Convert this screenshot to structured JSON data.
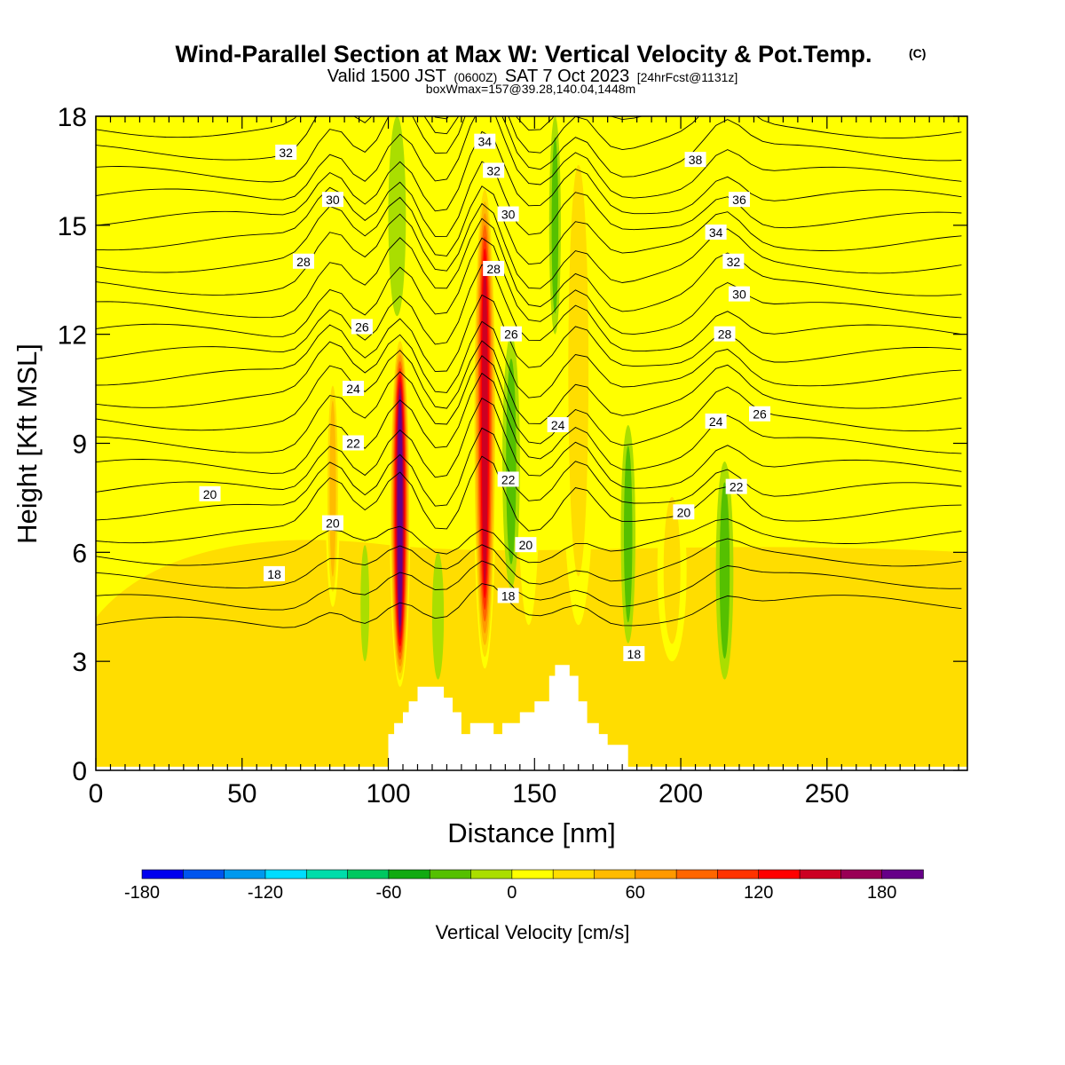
{
  "title": {
    "main": "Wind-Parallel Section at Max W: Vertical Velocity & Pot.Temp.",
    "copyright": "(C)",
    "valid_prefix": "Valid 1500 JST",
    "valid_utc": "(0600Z)",
    "valid_date": "SAT 7 Oct 2023",
    "forecast": "[24hrFcst@1131z]",
    "box_info": "boxWmax=157@39.28,140.04,1448m"
  },
  "chart_data": {
    "type": "heatmap",
    "xlabel": "Distance [nm]",
    "ylabel": "Height [Kft MSL]",
    "xlim": [
      0,
      298
    ],
    "ylim": [
      0,
      18
    ],
    "x_ticks": [
      0,
      50,
      100,
      150,
      200,
      250
    ],
    "y_ticks": [
      0,
      3,
      6,
      9,
      12,
      15,
      18
    ],
    "colorbar": {
      "label": "Vertical Velocity [cm/s]",
      "range": [
        -180,
        200
      ],
      "step": 20,
      "tick_values": [
        -180,
        -120,
        -60,
        0,
        60,
        120,
        180
      ],
      "colors": [
        "#0000ee",
        "#0055ee",
        "#0099ee",
        "#00ddff",
        "#00ddaa",
        "#00c860",
        "#11aa11",
        "#55c000",
        "#aade00",
        "#ffff00",
        "#ffdd00",
        "#ffbb00",
        "#ff9900",
        "#ff6600",
        "#ff3300",
        "#ff0000",
        "#cc0022",
        "#990055",
        "#660088"
      ]
    },
    "background_level": 0,
    "updraft_bands": [
      {
        "x": 104,
        "width": 7,
        "ytop": 12.0,
        "ybot": 2.3,
        "peak": 200
      },
      {
        "x": 133,
        "width": 8,
        "ytop": 16.3,
        "ybot": 2.8,
        "peak": 150
      },
      {
        "x": 81,
        "width": 5,
        "ytop": 11.0,
        "ybot": 4.5,
        "peak": 60
      },
      {
        "x": 148,
        "width": 9,
        "ytop": 18,
        "ybot": 4.0,
        "peak": 20
      },
      {
        "x": 165,
        "width": 12,
        "ytop": 18,
        "ybot": 4.0,
        "peak": 40
      },
      {
        "x": 197,
        "width": 10,
        "ytop": 8.0,
        "ybot": 3.0,
        "peak": 40
      },
      {
        "x": 75,
        "width": 3,
        "ytop": 15.0,
        "ybot": 6.5,
        "peak": 20
      }
    ],
    "downdraft_bands": [
      {
        "x": 142,
        "width": 6,
        "ytop": 12.0,
        "ybot": 5.0,
        "peak": -40
      },
      {
        "x": 157,
        "width": 4,
        "ytop": 18,
        "ybot": 12,
        "peak": -40
      },
      {
        "x": 182,
        "width": 5,
        "ytop": 9.5,
        "ybot": 3.5,
        "peak": -40
      },
      {
        "x": 215,
        "width": 6,
        "ytop": 8.5,
        "ybot": 2.5,
        "peak": -40
      },
      {
        "x": 92,
        "width": 3,
        "ytop": 6.2,
        "ybot": 3.0,
        "peak": -20
      },
      {
        "x": 117,
        "width": 4,
        "ytop": 6.0,
        "ybot": 2.5,
        "peak": -20
      },
      {
        "x": 103,
        "width": 6,
        "ytop": 18,
        "ybot": 12.5,
        "peak": -20
      }
    ],
    "lower_region": {
      "level": 20,
      "note": "yellow region below ~6 Kft"
    },
    "terrain_profile": [
      [
        100,
        0.0
      ],
      [
        100,
        1.0
      ],
      [
        102,
        1.0
      ],
      [
        102,
        1.3
      ],
      [
        105,
        1.3
      ],
      [
        105,
        1.6
      ],
      [
        107,
        1.6
      ],
      [
        107,
        1.9
      ],
      [
        110,
        1.9
      ],
      [
        110,
        2.3
      ],
      [
        119,
        2.3
      ],
      [
        119,
        2.0
      ],
      [
        122,
        2.0
      ],
      [
        122,
        1.6
      ],
      [
        125,
        1.6
      ],
      [
        125,
        1.0
      ],
      [
        128,
        1.0
      ],
      [
        128,
        1.3
      ],
      [
        136,
        1.3
      ],
      [
        136,
        1.0
      ],
      [
        139,
        1.0
      ],
      [
        139,
        1.3
      ],
      [
        145,
        1.3
      ],
      [
        145,
        1.6
      ],
      [
        150,
        1.6
      ],
      [
        150,
        1.9
      ],
      [
        155,
        1.9
      ],
      [
        155,
        2.6
      ],
      [
        157,
        2.6
      ],
      [
        157,
        2.9
      ],
      [
        162,
        2.9
      ],
      [
        162,
        2.6
      ],
      [
        165,
        2.6
      ],
      [
        165,
        1.9
      ],
      [
        168,
        1.9
      ],
      [
        168,
        1.3
      ],
      [
        172,
        1.3
      ],
      [
        172,
        1.0
      ],
      [
        175,
        1.0
      ],
      [
        175,
        0.7
      ],
      [
        182,
        0.7
      ],
      [
        182,
        0.0
      ]
    ],
    "contour_labels": [
      {
        "text": "32",
        "x": 65,
        "y": 17.0
      },
      {
        "text": "30",
        "x": 81,
        "y": 15.7
      },
      {
        "text": "28",
        "x": 71,
        "y": 14.0
      },
      {
        "text": "26",
        "x": 91,
        "y": 12.2
      },
      {
        "text": "24",
        "x": 88,
        "y": 10.5
      },
      {
        "text": "22",
        "x": 88,
        "y": 9.0
      },
      {
        "text": "20",
        "x": 39,
        "y": 7.6
      },
      {
        "text": "20",
        "x": 81,
        "y": 6.8
      },
      {
        "text": "18",
        "x": 61,
        "y": 5.4
      },
      {
        "text": "34",
        "x": 133,
        "y": 17.3
      },
      {
        "text": "32",
        "x": 136,
        "y": 16.5
      },
      {
        "text": "30",
        "x": 141,
        "y": 15.3
      },
      {
        "text": "28",
        "x": 136,
        "y": 13.8
      },
      {
        "text": "26",
        "x": 142,
        "y": 12.0
      },
      {
        "text": "24",
        "x": 158,
        "y": 9.5
      },
      {
        "text": "22",
        "x": 141,
        "y": 8.0
      },
      {
        "text": "20",
        "x": 147,
        "y": 6.2
      },
      {
        "text": "18",
        "x": 141,
        "y": 4.8
      },
      {
        "text": "18",
        "x": 184,
        "y": 3.2
      },
      {
        "text": "38",
        "x": 205,
        "y": 16.8
      },
      {
        "text": "36",
        "x": 220,
        "y": 15.7
      },
      {
        "text": "34",
        "x": 212,
        "y": 14.8
      },
      {
        "text": "32",
        "x": 218,
        "y": 14.0
      },
      {
        "text": "30",
        "x": 220,
        "y": 13.1
      },
      {
        "text": "28",
        "x": 215,
        "y": 12.0
      },
      {
        "text": "26",
        "x": 227,
        "y": 9.8
      },
      {
        "text": "24",
        "x": 212,
        "y": 9.6
      },
      {
        "text": "22",
        "x": 219,
        "y": 7.8
      },
      {
        "text": "20",
        "x": 201,
        "y": 7.1
      }
    ]
  }
}
